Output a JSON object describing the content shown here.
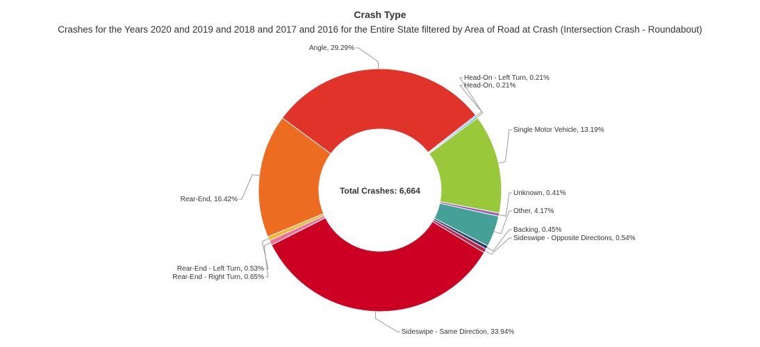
{
  "chart_data": {
    "type": "pie",
    "title": "Crash Type",
    "subtitle": "Crashes for the Years 2020 and 2019 and 2018 and 2017 and 2016 for the Entire State filtered by Area of Road at Crash (Intersection Crash - Roundabout)",
    "center_label": "Total Crashes: 6,664",
    "slices": [
      {
        "label": "Angle, 29.29%",
        "value": 29.29,
        "color": "#e0342a"
      },
      {
        "label": "Head-On - Left Turn, 0.21%",
        "value": 0.21,
        "color": "#7cb5ec"
      },
      {
        "label": "Head-On, 0.21%",
        "value": 0.21,
        "color": "#3fa0d9"
      },
      {
        "label": "Single Motor Vehicle, 13.19%",
        "value": 13.19,
        "color": "#99c93a"
      },
      {
        "label": "Unknown, 0.41%",
        "value": 0.41,
        "color": "#a05cbf"
      },
      {
        "label": "Other, 4.17%",
        "value": 4.17,
        "color": "#45a097"
      },
      {
        "label": "Backing, 0.45%",
        "value": 0.45,
        "color": "#2c3e66"
      },
      {
        "label": "Sideswipe - Opposite Directions, 0.54%",
        "value": 0.54,
        "color": "#b3264f"
      },
      {
        "label": "Sideswipe - Same Direction, 33.94%",
        "value": 33.94,
        "color": "#cc0022"
      },
      {
        "label": "Rear-End - Right Turn, 0.65%",
        "value": 0.65,
        "color": "#f26f96"
      },
      {
        "label": "Rear-End - Left Turn, 0.53%",
        "value": 0.53,
        "color": "#f7b52b"
      },
      {
        "label": "Rear-End, 16.42%",
        "value": 16.42,
        "color": "#ec6c22"
      }
    ]
  }
}
